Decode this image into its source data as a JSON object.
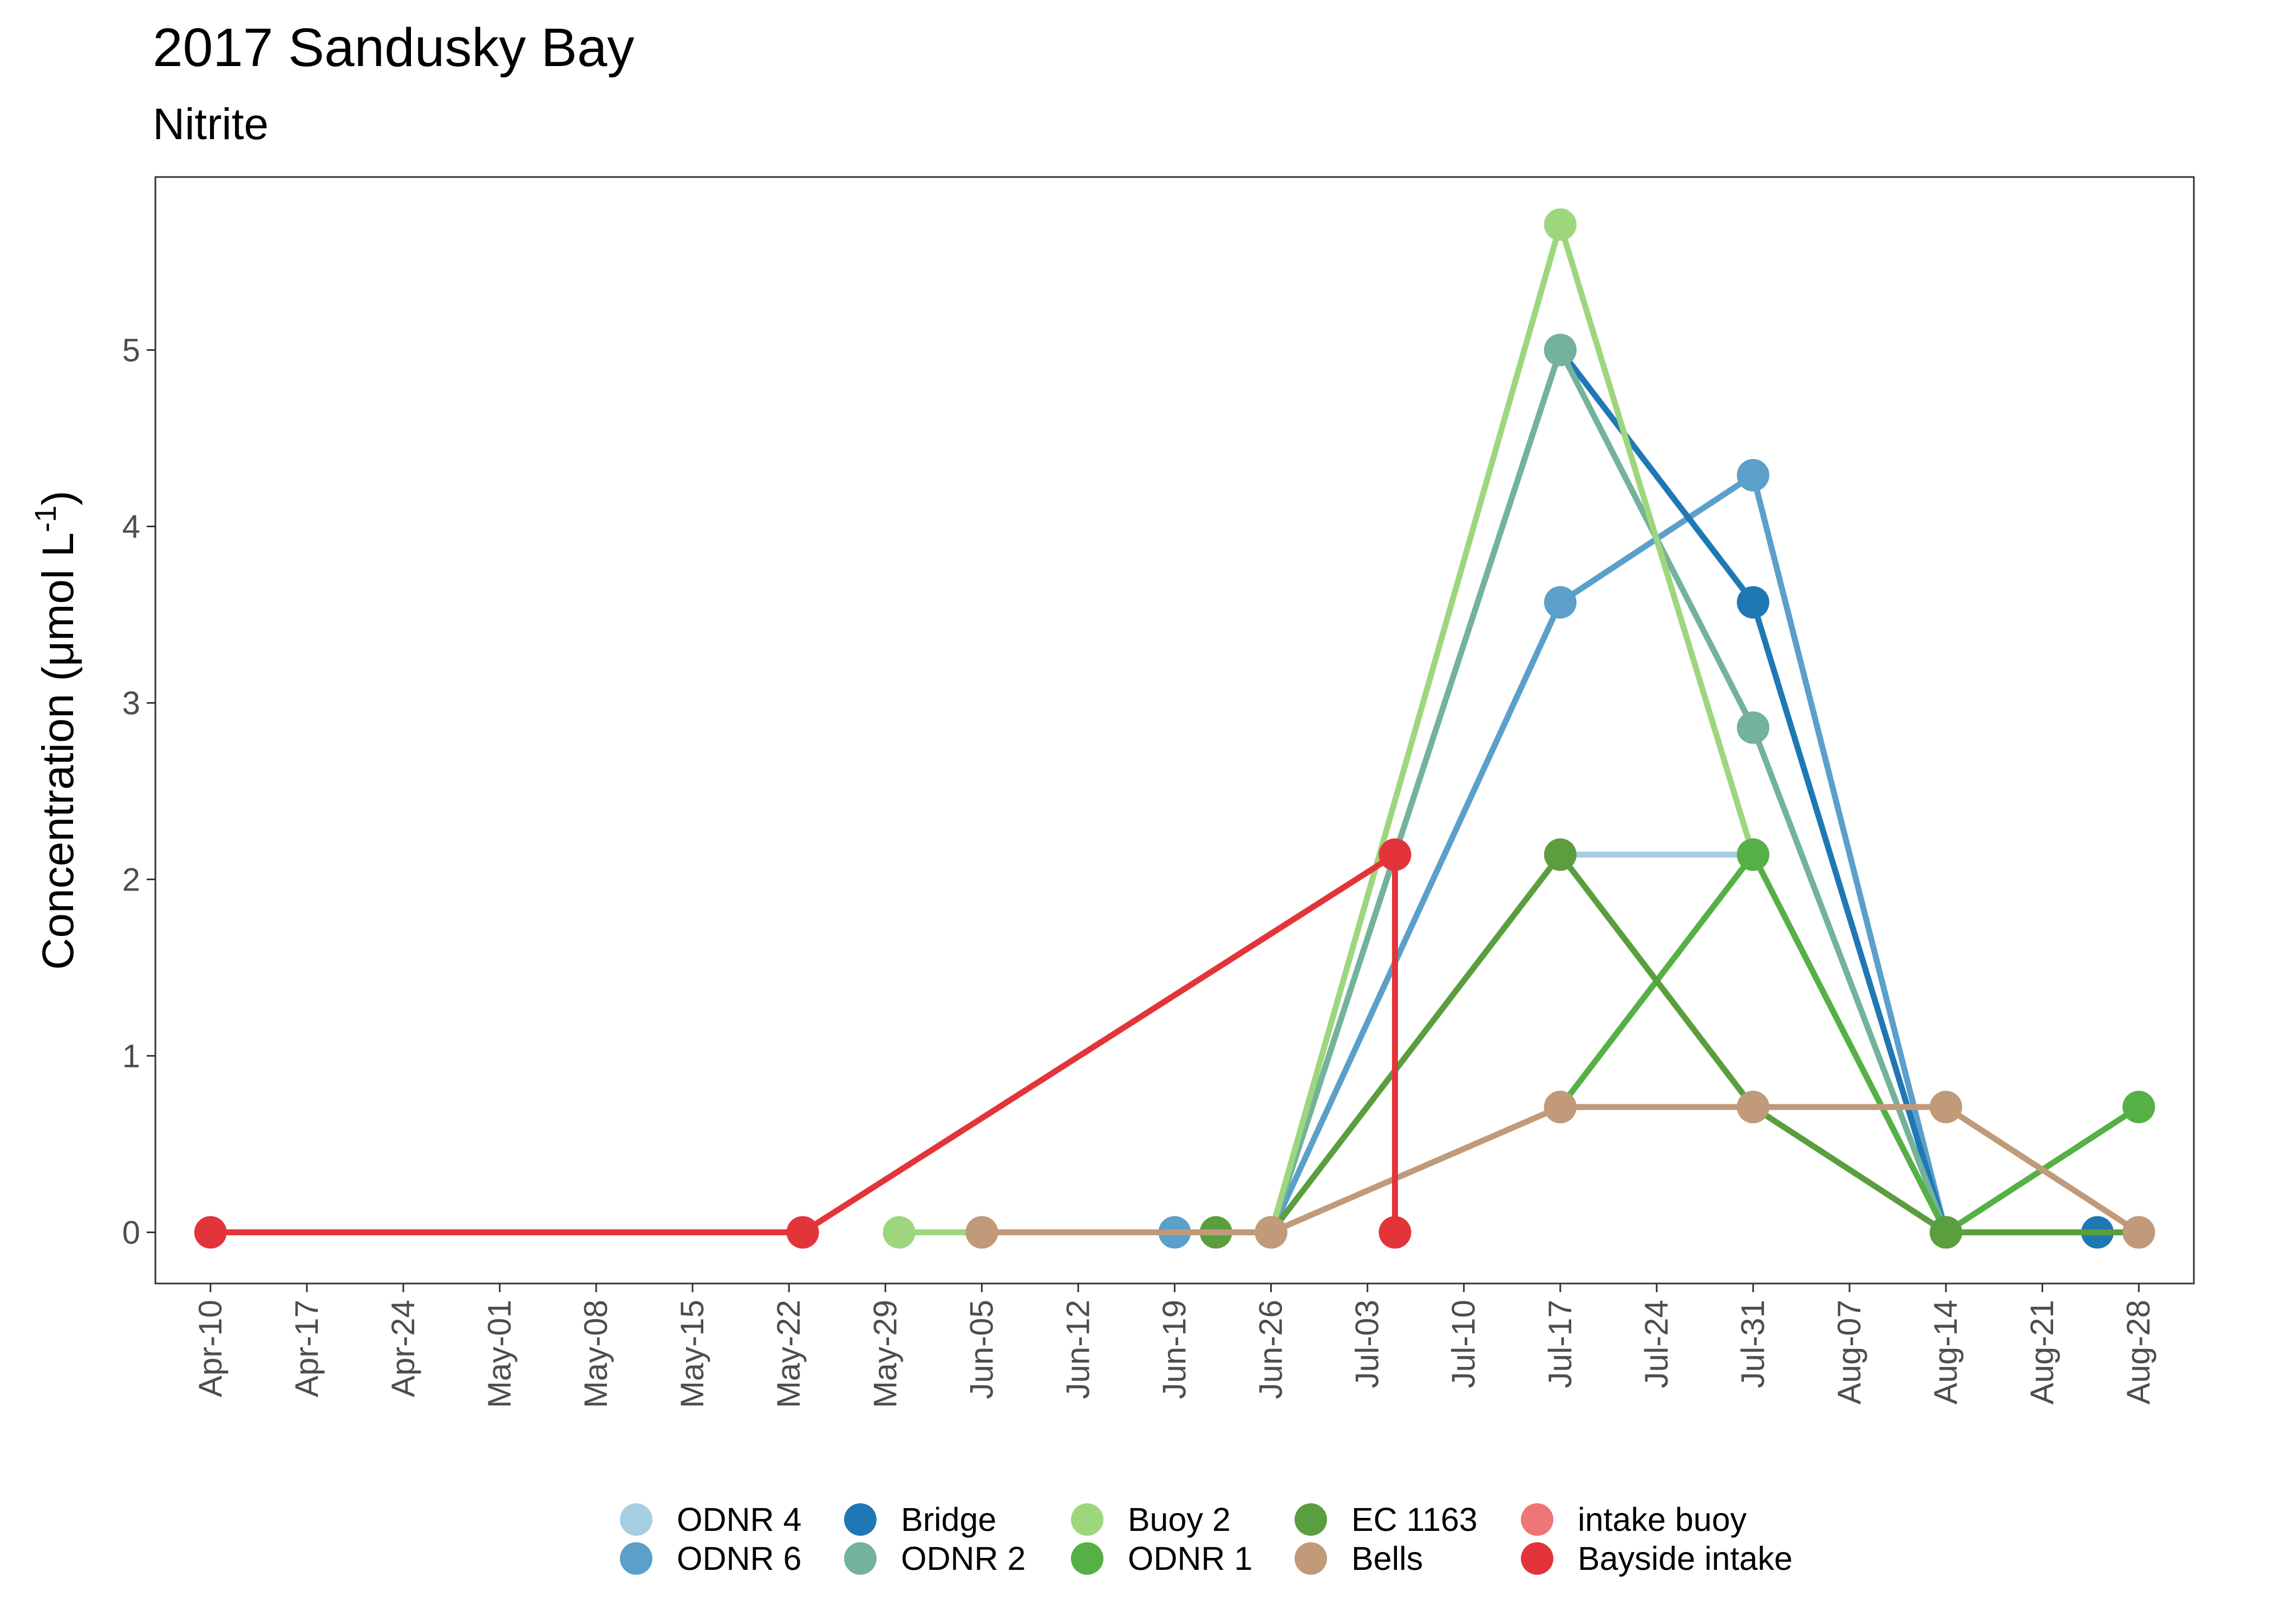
{
  "chart_data": {
    "type": "line",
    "title": "2017 Sandusky Bay",
    "subtitle": "Nitrite",
    "xlabel": "",
    "ylabel": "Concentration (μmol L-1)",
    "ylabel_parts": {
      "main": "Concentration (μmol L",
      "sup": "-1",
      "close": ")"
    },
    "xlim": [
      "2017-04-06",
      "2017-09-01"
    ],
    "ylim": [
      -0.29,
      5.98
    ],
    "x_ticks": [
      "2017-04-10",
      "2017-04-17",
      "2017-04-24",
      "2017-05-01",
      "2017-05-08",
      "2017-05-15",
      "2017-05-22",
      "2017-05-29",
      "2017-06-05",
      "2017-06-12",
      "2017-06-19",
      "2017-06-26",
      "2017-07-03",
      "2017-07-10",
      "2017-07-17",
      "2017-07-24",
      "2017-07-31",
      "2017-08-07",
      "2017-08-14",
      "2017-08-21",
      "2017-08-28"
    ],
    "x_tick_labels": [
      "Apr-10",
      "Apr-17",
      "Apr-24",
      "May-01",
      "May-08",
      "May-15",
      "May-22",
      "May-29",
      "Jun-05",
      "Jun-12",
      "Jun-19",
      "Jun-26",
      "Jul-03",
      "Jul-10",
      "Jul-17",
      "Jul-24",
      "Jul-31",
      "Aug-07",
      "Aug-14",
      "Aug-21",
      "Aug-28"
    ],
    "y_ticks": [
      0,
      1,
      2,
      3,
      4,
      5
    ],
    "y_tick_labels": [
      "0",
      "1",
      "2",
      "3",
      "4",
      "5"
    ],
    "grid": false,
    "legend_position": "bottom",
    "series": [
      {
        "name": "ODNR 4",
        "color": "#a6cee3",
        "points": [
          {
            "x": "2017-07-17",
            "y": 2.14
          },
          {
            "x": "2017-07-31",
            "y": 2.14
          }
        ]
      },
      {
        "name": "ODNR 6",
        "color": "#5b9fcb",
        "points": [
          {
            "x": "2017-06-05",
            "y": 0
          },
          {
            "x": "2017-06-19",
            "y": 0
          },
          {
            "x": "2017-06-26",
            "y": 0
          },
          {
            "x": "2017-07-17",
            "y": 3.57
          },
          {
            "x": "2017-07-31",
            "y": 4.29
          },
          {
            "x": "2017-08-14",
            "y": 0
          },
          {
            "x": "2017-08-28",
            "y": 0
          }
        ]
      },
      {
        "name": "Bridge",
        "color": "#1f78b4",
        "points": [
          {
            "x": "2017-07-17",
            "y": 5.0
          },
          {
            "x": "2017-07-31",
            "y": 3.57
          },
          {
            "x": "2017-08-14",
            "y": 0
          },
          {
            "x": "2017-08-25",
            "y": 0
          }
        ]
      },
      {
        "name": "ODNR 2",
        "color": "#73b29b",
        "points": [
          {
            "x": "2017-06-26",
            "y": 0
          },
          {
            "x": "2017-07-17",
            "y": 5.0
          },
          {
            "x": "2017-07-31",
            "y": 2.86
          },
          {
            "x": "2017-08-14",
            "y": 0
          }
        ]
      },
      {
        "name": "Buoy 2",
        "color": "#9ed67e",
        "points": [
          {
            "x": "2017-05-30",
            "y": 0
          },
          {
            "x": "2017-06-05",
            "y": 0
          },
          {
            "x": "2017-06-26",
            "y": 0
          },
          {
            "x": "2017-07-17",
            "y": 5.71
          },
          {
            "x": "2017-07-31",
            "y": 2.14
          },
          {
            "x": "2017-08-14",
            "y": 0
          }
        ]
      },
      {
        "name": "ODNR 1",
        "color": "#55b046",
        "points": [
          {
            "x": "2017-07-17",
            "y": 0.71
          },
          {
            "x": "2017-07-31",
            "y": 2.14
          },
          {
            "x": "2017-08-14",
            "y": 0
          },
          {
            "x": "2017-08-28",
            "y": 0.71
          }
        ]
      },
      {
        "name": "EC 1163",
        "color": "#5a9e3e",
        "points": [
          {
            "x": "2017-06-22",
            "y": 0
          },
          {
            "x": "2017-06-26",
            "y": 0
          },
          {
            "x": "2017-07-17",
            "y": 2.14
          },
          {
            "x": "2017-07-31",
            "y": 0.71
          },
          {
            "x": "2017-08-14",
            "y": 0
          },
          {
            "x": "2017-08-28",
            "y": 0
          }
        ]
      },
      {
        "name": "Bells",
        "color": "#c19a7a",
        "points": [
          {
            "x": "2017-06-05",
            "y": 0
          },
          {
            "x": "2017-06-26",
            "y": 0
          },
          {
            "x": "2017-07-17",
            "y": 0.71
          },
          {
            "x": "2017-07-31",
            "y": 0.71
          },
          {
            "x": "2017-08-14",
            "y": 0.71
          },
          {
            "x": "2017-08-28",
            "y": 0
          }
        ]
      },
      {
        "name": "intake buoy",
        "color": "#f07576",
        "points": []
      },
      {
        "name": "Bayside intake",
        "color": "#e3343a",
        "points": [
          {
            "x": "2017-04-10",
            "y": 0
          },
          {
            "x": "2017-05-23",
            "y": 0
          },
          {
            "x": "2017-07-05",
            "y": 2.14
          },
          {
            "x": "2017-07-05",
            "y": 0
          }
        ]
      }
    ]
  }
}
